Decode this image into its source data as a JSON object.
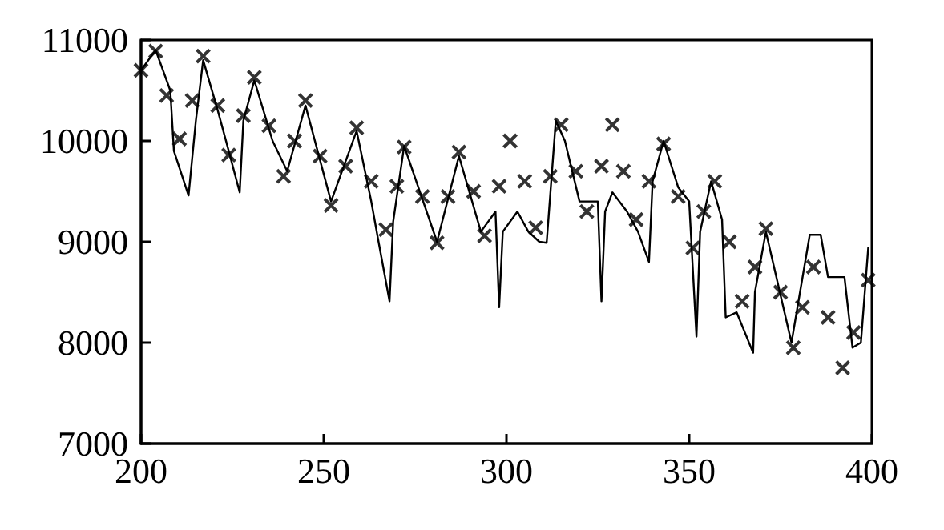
{
  "chart_data": {
    "type": "line",
    "xlim": [
      200,
      400
    ],
    "xticks": [
      200,
      250,
      300,
      350,
      400
    ],
    "ylim": [
      7000,
      11000
    ],
    "yticks": [
      7000,
      8000,
      9000,
      10000,
      11000
    ],
    "grid": false,
    "series": [
      {
        "color": "#000000",
        "marker": "none",
        "line_style": "solid",
        "x": [
          200,
          204,
          208,
          209,
          213,
          215,
          217,
          221,
          224,
          227,
          228,
          231,
          236,
          240,
          245,
          252,
          259,
          263,
          265,
          268,
          269,
          272,
          281,
          287,
          293,
          297,
          298,
          299,
          303,
          306,
          309,
          311,
          313.5,
          316,
          320,
          325,
          326,
          327,
          329,
          333,
          336,
          339,
          340,
          343,
          347,
          350,
          352,
          353,
          356,
          359,
          360,
          363,
          367.5,
          368,
          371,
          378,
          383,
          386,
          388,
          392.5,
          394.7,
          397,
          399
        ],
        "values": [
          10700,
          10900,
          10500,
          9900,
          9460,
          10200,
          10800,
          10300,
          9900,
          9490,
          10200,
          10600,
          10000,
          9700,
          10350,
          9400,
          10100,
          9400,
          9000,
          8410,
          9200,
          9950,
          9000,
          9850,
          9100,
          9300,
          8350,
          9100,
          9300,
          9100,
          9000,
          8990,
          10200,
          10000,
          9400,
          9400,
          8410,
          9300,
          9490,
          9300,
          9100,
          8800,
          9600,
          10000,
          9540,
          9400,
          8060,
          9100,
          9600,
          9220,
          8250,
          8300,
          7900,
          8500,
          9100,
          8000,
          9070,
          9070,
          8650,
          8650,
          7950,
          8000,
          8940
        ]
      },
      {
        "type": "scatter",
        "color": "#000000",
        "marker": "cross",
        "x": [
          200,
          204,
          207,
          210.5,
          214,
          217,
          221,
          224,
          228,
          231,
          235,
          239,
          242,
          245,
          249,
          252,
          256,
          259,
          263,
          267,
          270,
          272,
          277,
          281,
          284,
          287,
          291,
          294,
          298,
          301,
          305,
          308,
          312,
          315,
          319,
          322,
          326,
          329,
          332,
          335.5,
          339,
          343,
          347,
          351,
          354,
          357,
          361,
          364.5,
          368,
          371,
          375,
          378.5,
          381,
          384,
          388,
          392,
          395,
          399
        ],
        "values": [
          10700,
          10890,
          10450,
          10020,
          10400,
          10840,
          10350,
          9860,
          10250,
          10630,
          10150,
          9650,
          10000,
          10400,
          9850,
          9360,
          9750,
          10130,
          9600,
          9120,
          9550,
          9940,
          9450,
          8990,
          9450,
          9890,
          9500,
          9060,
          9550,
          10000,
          9600,
          9140,
          9650,
          10160,
          9700,
          9300,
          9750,
          10160,
          9700,
          9220,
          9600,
          9970,
          9450,
          8940,
          9300,
          9600,
          9000,
          8410,
          8750,
          9130,
          8500,
          7950,
          8350,
          8750,
          8250,
          7750,
          8100,
          8620
        ]
      }
    ]
  }
}
